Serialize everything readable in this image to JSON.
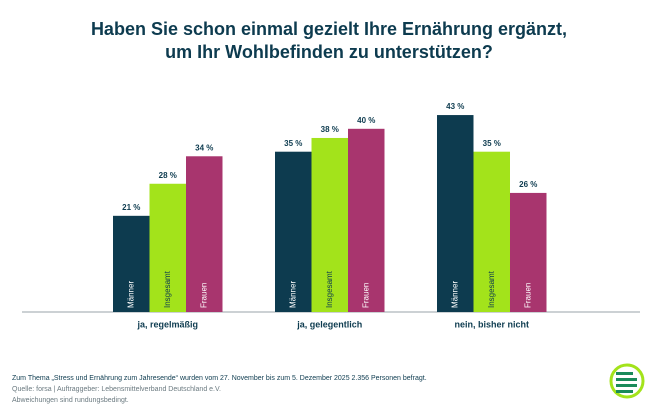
{
  "chart_data": {
    "type": "bar",
    "title": [
      "Haben Sie schon einmal gezielt Ihre Ernährung ergänzt,",
      "um Ihr Wohlbefinden zu unterstützen?"
    ],
    "categories": [
      "ja, regelmäßig",
      "ja, gelegentlich",
      "nein, bisher nicht"
    ],
    "series": [
      {
        "name": "Männer",
        "color": "#0d3b4f",
        "values": [
          21,
          35,
          43
        ],
        "value_labels": [
          "21 %",
          "35 %",
          "43 %"
        ]
      },
      {
        "name": "Insgesamt",
        "color": "#a3e31b",
        "values": [
          28,
          38,
          35
        ],
        "value_labels": [
          "28 %",
          "38 %",
          "35 %"
        ]
      },
      {
        "name": "Frauen",
        "color": "#a8356e",
        "values": [
          34,
          40,
          26
        ],
        "value_labels": [
          "34 %",
          "40 %",
          "26 %"
        ]
      }
    ],
    "notes": [
      "Zum Thema „Stress und Ernährung zum Jahresende“ wurden vom 27. November bis zum 5. Dezember 2025 2.356 Personen befragt.",
      "Quelle: forsa | Auftraggeber: Lebensmittelverband Deutschland e.V.",
      "Abweichungen sind rundungsbedingt."
    ]
  }
}
